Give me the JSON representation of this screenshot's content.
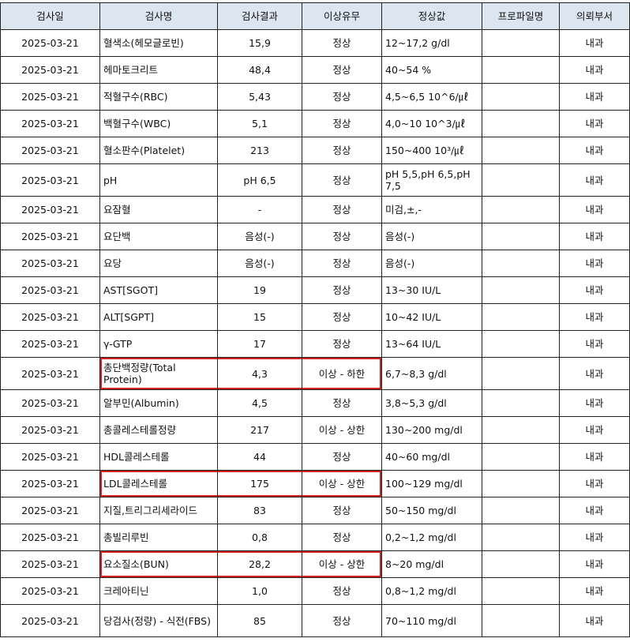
{
  "colors": {
    "header_bg": "#dce6f1",
    "highlight_border": "#d62020"
  },
  "columns": [
    "검사일",
    "검사명",
    "검사결과",
    "이상유무",
    "정상값",
    "프로파일명",
    "의뢰부서"
  ],
  "rows": [
    {
      "date": "2025-03-21",
      "name": "혈색소(헤모글로빈)",
      "result": "15,9",
      "status": "정상",
      "normal": "12~17,2 g/dl",
      "profile": "",
      "dept": "내과",
      "highlight": false
    },
    {
      "date": "2025-03-21",
      "name": "헤마토크리트",
      "result": "48,4",
      "status": "정상",
      "normal": "40~54 %",
      "profile": "",
      "dept": "내과",
      "highlight": false
    },
    {
      "date": "2025-03-21",
      "name": "적혈구수(RBC)",
      "result": "5,43",
      "status": "정상",
      "normal": "4,5~6,5 10^6/㎕",
      "profile": "",
      "dept": "내과",
      "highlight": false
    },
    {
      "date": "2025-03-21",
      "name": "백혈구수(WBC)",
      "result": "5,1",
      "status": "정상",
      "normal": "4,0~10 10^3/㎕",
      "profile": "",
      "dept": "내과",
      "highlight": false
    },
    {
      "date": "2025-03-21",
      "name": "혈소판수(Platelet)",
      "result": "213",
      "status": "정상",
      "normal": "150~400 10³/㎕",
      "profile": "",
      "dept": "내과",
      "highlight": false
    },
    {
      "date": "2025-03-21",
      "name": "pH",
      "result": "pH 6,5",
      "status": "정상",
      "normal": "pH 5,5,pH 6,5,pH 7,5",
      "profile": "",
      "dept": "내과",
      "highlight": false,
      "tall": true
    },
    {
      "date": "2025-03-21",
      "name": "요잠혈",
      "result": "-",
      "status": "정상",
      "normal": "미검,±,-",
      "profile": "",
      "dept": "내과",
      "highlight": false
    },
    {
      "date": "2025-03-21",
      "name": "요단백",
      "result": "음성(-)",
      "status": "정상",
      "normal": "음성(-)",
      "profile": "",
      "dept": "내과",
      "highlight": false
    },
    {
      "date": "2025-03-21",
      "name": "요당",
      "result": "음성(-)",
      "status": "정상",
      "normal": "음성(-)",
      "profile": "",
      "dept": "내과",
      "highlight": false
    },
    {
      "date": "2025-03-21",
      "name": "AST[SGOT]",
      "result": "19",
      "status": "정상",
      "normal": "13~30 IU/L",
      "profile": "",
      "dept": "내과",
      "highlight": false
    },
    {
      "date": "2025-03-21",
      "name": "ALT[SGPT]",
      "result": "15",
      "status": "정상",
      "normal": "10~42 IU/L",
      "profile": "",
      "dept": "내과",
      "highlight": false
    },
    {
      "date": "2025-03-21",
      "name": "γ-GTP",
      "result": "17",
      "status": "정상",
      "normal": "13~64 IU/L",
      "profile": "",
      "dept": "내과",
      "highlight": false
    },
    {
      "date": "2025-03-21",
      "name": "총단백정량(Total Protein)",
      "result": "4,3",
      "status": "이상 - 하한",
      "normal": "6,7~8,3 g/dl",
      "profile": "",
      "dept": "내과",
      "highlight": true,
      "tall": true
    },
    {
      "date": "2025-03-21",
      "name": "알부민(Albumin)",
      "result": "4,5",
      "status": "정상",
      "normal": "3,8~5,3 g/dl",
      "profile": "",
      "dept": "내과",
      "highlight": false
    },
    {
      "date": "2025-03-21",
      "name": "총콜레스테롤정량",
      "result": "217",
      "status": "이상 - 상한",
      "normal": "130~200 mg/dl",
      "profile": "",
      "dept": "내과",
      "highlight": false
    },
    {
      "date": "2025-03-21",
      "name": "HDL콜레스테롤",
      "result": "44",
      "status": "정상",
      "normal": "40~60 mg/dl",
      "profile": "",
      "dept": "내과",
      "highlight": false
    },
    {
      "date": "2025-03-21",
      "name": "LDL콜레스테롤",
      "result": "175",
      "status": "이상 - 상한",
      "normal": "100~129 mg/dl",
      "profile": "",
      "dept": "내과",
      "highlight": true
    },
    {
      "date": "2025-03-21",
      "name": "지질,트리그리세라이드",
      "result": "83",
      "status": "정상",
      "normal": "50~150 mg/dl",
      "profile": "",
      "dept": "내과",
      "highlight": false
    },
    {
      "date": "2025-03-21",
      "name": "총빌리루빈",
      "result": "0,8",
      "status": "정상",
      "normal": "0,2~1,2 mg/dl",
      "profile": "",
      "dept": "내과",
      "highlight": false
    },
    {
      "date": "2025-03-21",
      "name": "요소질소(BUN)",
      "result": "28,2",
      "status": "이상 - 상한",
      "normal": "8~20 mg/dl",
      "profile": "",
      "dept": "내과",
      "highlight": true
    },
    {
      "date": "2025-03-21",
      "name": "크레아티닌",
      "result": "1,0",
      "status": "정상",
      "normal": "0,8~1,2 mg/dl",
      "profile": "",
      "dept": "내과",
      "highlight": false
    },
    {
      "date": "2025-03-21",
      "name": "당검사(정량) - 식전(FBS)",
      "result": "85",
      "status": "정상",
      "normal": "70~110 mg/dl",
      "profile": "",
      "dept": "내과",
      "highlight": false,
      "tall": true
    }
  ]
}
